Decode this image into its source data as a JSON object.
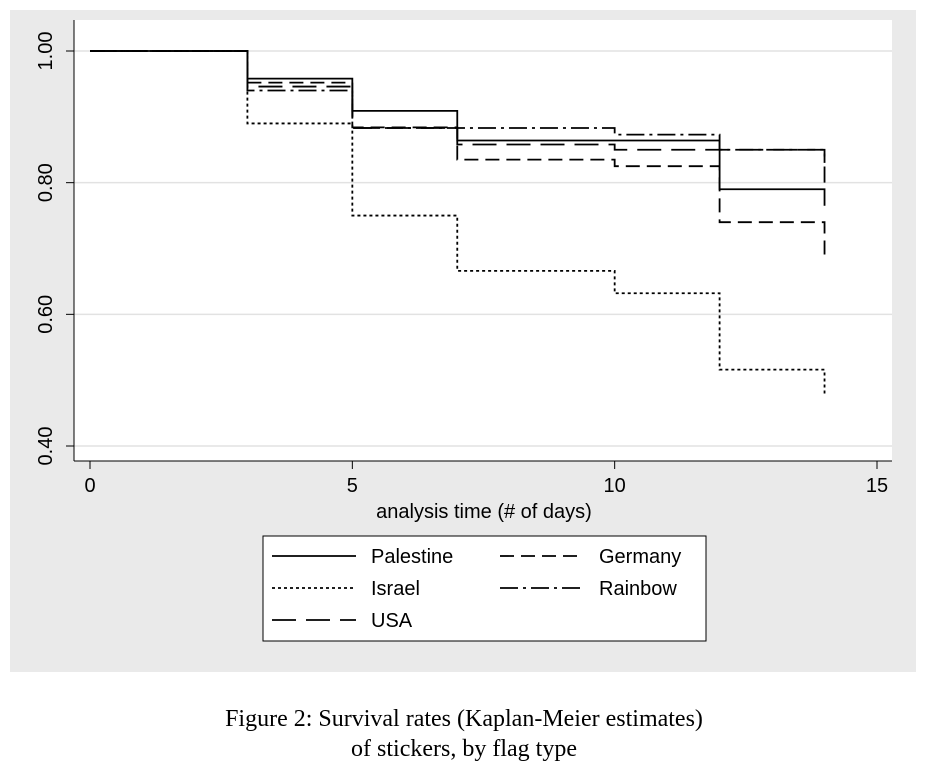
{
  "chart_data": {
    "type": "line",
    "step": true,
    "xlabel": "analysis time (# of days)",
    "ylabel": "",
    "xlim": [
      0,
      15
    ],
    "ylim": [
      0.4,
      1.0
    ],
    "x_ticks": [
      0,
      5,
      10,
      15
    ],
    "x_tick_labels": [
      "0",
      "5",
      "10",
      "15"
    ],
    "y_ticks": [
      0.4,
      0.6,
      0.8,
      1.0
    ],
    "y_tick_labels": [
      "0.40",
      "0.60",
      "0.80",
      "1.00"
    ],
    "grid": "horizontal",
    "legend_position": "bottom",
    "series": [
      {
        "name": "Palestine",
        "dash": "solid",
        "x": [
          0,
          3,
          5,
          7,
          12,
          14
        ],
        "y": [
          1.0,
          0.958,
          0.909,
          0.864,
          0.79,
          0.765
        ]
      },
      {
        "name": "Germany",
        "dash": "dashed",
        "x": [
          0,
          3,
          5,
          7,
          10,
          12,
          14
        ],
        "y": [
          1.0,
          0.952,
          0.884,
          0.835,
          0.825,
          0.74,
          0.682
        ]
      },
      {
        "name": "Israel",
        "dash": "dotted",
        "x": [
          0,
          3,
          5,
          7,
          10,
          12,
          14
        ],
        "y": [
          1.0,
          0.89,
          0.75,
          0.666,
          0.632,
          0.516,
          0.476
        ]
      },
      {
        "name": "Rainbow",
        "dash": "dash-dot",
        "x": [
          0,
          3,
          5,
          7,
          10,
          12,
          14
        ],
        "y": [
          1.0,
          0.94,
          0.883,
          0.883,
          0.873,
          0.85,
          0.83
        ]
      },
      {
        "name": "USA",
        "dash": "long-dash",
        "x": [
          0,
          3,
          5,
          7,
          10,
          14
        ],
        "y": [
          1.0,
          0.946,
          0.883,
          0.858,
          0.85,
          0.8
        ]
      }
    ]
  },
  "legend": {
    "order": [
      "Palestine",
      "Germany",
      "Israel",
      "Rainbow",
      "USA"
    ]
  },
  "caption": {
    "line1": "Figure 2: Survival rates (Kaplan-Meier estimates)",
    "line2": "of stickers, by flag type"
  },
  "colors": {
    "panel_background": "#eaeaea",
    "plot_background": "#ffffff",
    "grid": "#e2e2e2",
    "line": "#000000"
  }
}
